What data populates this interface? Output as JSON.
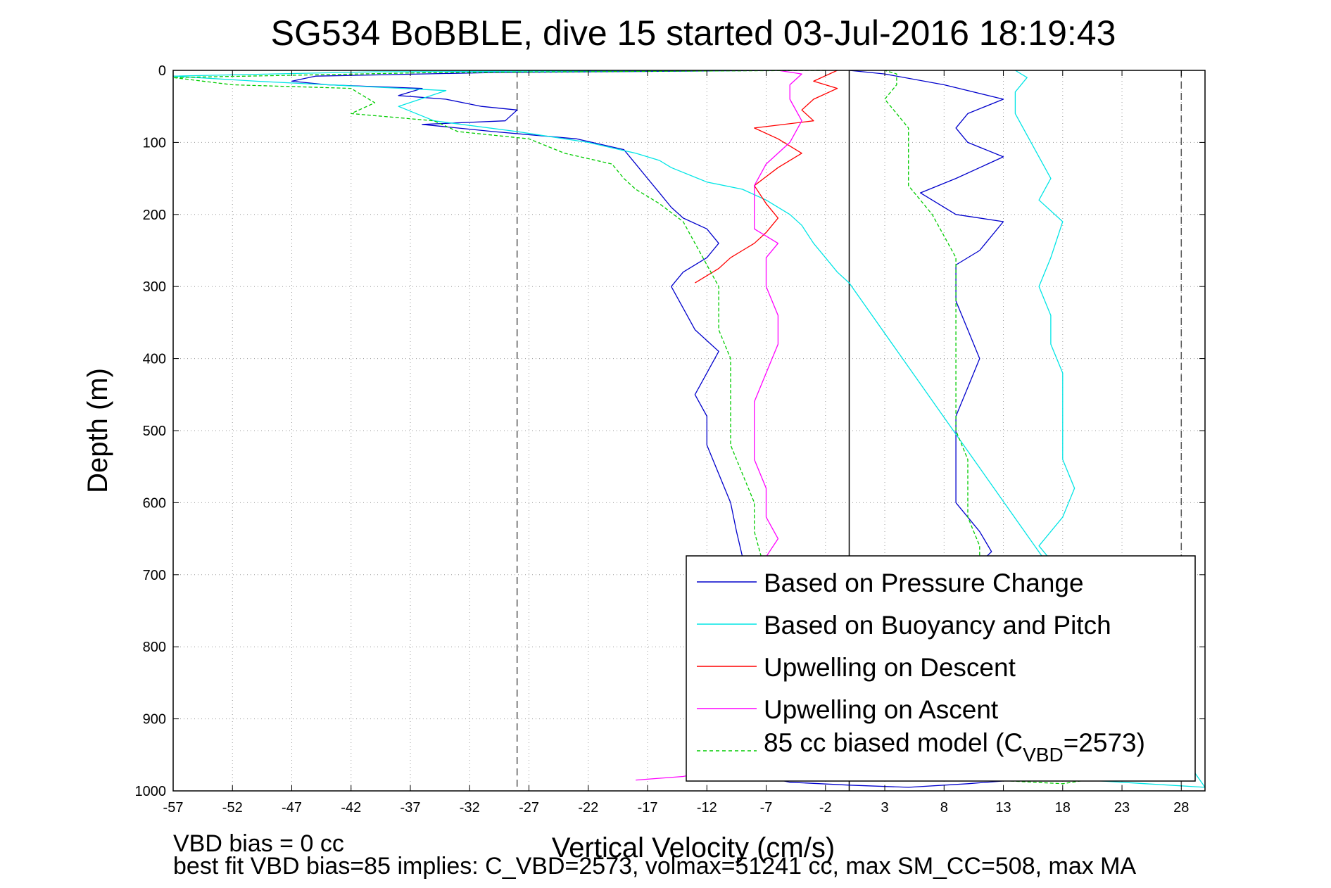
{
  "chart_data": {
    "type": "line",
    "title": "SG534 BoBBLE, dive 15 started 03-Jul-2016 18:19:43",
    "xlabel": "Vertical Velocity (cm/s)",
    "ylabel": "Depth (m)",
    "xlim": [
      -57,
      30
    ],
    "ylim": [
      1000,
      0
    ],
    "y_reversed": true,
    "grid": true,
    "x_ticks": [
      "-57",
      "-52",
      "-47",
      "-42",
      "-37",
      "-32",
      "-27",
      "-22",
      "-17",
      "-12",
      "-7",
      "-2",
      "3",
      "8",
      "13",
      "18",
      "23",
      "28"
    ],
    "y_ticks": [
      "0",
      "100",
      "200",
      "300",
      "400",
      "500",
      "600",
      "700",
      "800",
      "900",
      "1000"
    ],
    "legend_position": "bottom-right",
    "vertical_lines": [
      {
        "x": -28,
        "style": "dashed",
        "color": "#555555"
      },
      {
        "x": 0,
        "style": "solid",
        "color": "#000000"
      },
      {
        "x": 28,
        "style": "dashed",
        "color": "#555555"
      }
    ],
    "series": [
      {
        "name": "Based on Pressure Change",
        "color": "#0000cc",
        "dash": "solid",
        "points": [
          [
            -5,
            0
          ],
          [
            -30,
            3
          ],
          [
            -45,
            8
          ],
          [
            -47,
            15
          ],
          [
            -44,
            20
          ],
          [
            -36,
            25
          ],
          [
            -38,
            35
          ],
          [
            -34,
            40
          ],
          [
            -31,
            50
          ],
          [
            -28,
            55
          ],
          [
            -29,
            70
          ],
          [
            -36,
            75
          ],
          [
            -30,
            85
          ],
          [
            -23,
            95
          ],
          [
            -19,
            110
          ],
          [
            -18,
            130
          ],
          [
            -17,
            150
          ],
          [
            -16,
            170
          ],
          [
            -15,
            190
          ],
          [
            -14,
            205
          ],
          [
            -12,
            220
          ],
          [
            -11,
            240
          ],
          [
            -12,
            260
          ],
          [
            -14,
            280
          ],
          [
            -15,
            300
          ],
          [
            -14,
            330
          ],
          [
            -13,
            360
          ],
          [
            -11,
            390
          ],
          [
            -12,
            420
          ],
          [
            -13,
            450
          ],
          [
            -12,
            480
          ],
          [
            -12,
            520
          ],
          [
            -11,
            560
          ],
          [
            -10,
            600
          ],
          [
            -9.5,
            640
          ],
          [
            -9,
            675
          ],
          [
            -10,
            700
          ],
          [
            -9,
            750
          ],
          [
            -8,
            800
          ],
          [
            -7,
            850
          ],
          [
            -6,
            900
          ],
          [
            -8,
            940
          ],
          [
            -10,
            970
          ],
          [
            -5,
            988
          ],
          [
            0,
            992
          ],
          [
            5,
            995
          ],
          [
            10,
            990
          ],
          [
            14,
            985
          ],
          [
            18,
            980
          ],
          [
            16,
            970
          ],
          [
            13,
            960
          ],
          [
            10,
            940
          ],
          [
            8,
            900
          ],
          [
            8,
            860
          ],
          [
            9,
            800
          ],
          [
            9,
            750
          ],
          [
            10,
            700
          ],
          [
            12,
            668
          ],
          [
            11,
            640
          ],
          [
            9,
            600
          ],
          [
            9,
            560
          ],
          [
            9,
            520
          ],
          [
            9,
            480
          ],
          [
            10,
            440
          ],
          [
            11,
            400
          ],
          [
            10,
            360
          ],
          [
            9,
            320
          ],
          [
            9,
            270
          ],
          [
            11,
            250
          ],
          [
            13,
            210
          ],
          [
            9,
            200
          ],
          [
            6,
            170
          ],
          [
            9,
            150
          ],
          [
            13,
            120
          ],
          [
            10,
            100
          ],
          [
            9,
            80
          ],
          [
            10,
            60
          ],
          [
            13,
            40
          ],
          [
            8,
            20
          ],
          [
            3,
            5
          ],
          [
            0,
            0
          ]
        ]
      },
      {
        "name": "Based on Buoyancy and Pitch",
        "color": "#00e5e5",
        "dash": "solid",
        "points": [
          [
            -10,
            0
          ],
          [
            -40,
            2
          ],
          [
            -57,
            8
          ],
          [
            -50,
            15
          ],
          [
            -34,
            28
          ],
          [
            -38,
            50
          ],
          [
            -35,
            70
          ],
          [
            -28,
            85
          ],
          [
            -22,
            100
          ],
          [
            -18,
            115
          ],
          [
            -16,
            125
          ],
          [
            -15,
            135
          ],
          [
            -12,
            155
          ],
          [
            -9,
            165
          ],
          [
            -7,
            180
          ],
          [
            -5,
            200
          ],
          [
            -4,
            215
          ],
          [
            -3,
            240
          ],
          [
            -2,
            260
          ],
          [
            -1,
            280
          ],
          [
            0,
            295
          ],
          [
            30,
            995
          ],
          [
            25,
            990
          ],
          [
            20,
            985
          ],
          [
            19,
            960
          ],
          [
            17,
            930
          ],
          [
            17,
            900
          ],
          [
            16,
            850
          ],
          [
            17,
            800
          ],
          [
            17,
            750
          ],
          [
            18,
            700
          ],
          [
            16,
            660
          ],
          [
            18,
            620
          ],
          [
            19,
            580
          ],
          [
            18,
            540
          ],
          [
            18,
            500
          ],
          [
            18,
            460
          ],
          [
            18,
            420
          ],
          [
            17,
            380
          ],
          [
            17,
            340
          ],
          [
            16,
            300
          ],
          [
            17,
            260
          ],
          [
            18,
            210
          ],
          [
            16,
            180
          ],
          [
            17,
            150
          ],
          [
            16,
            120
          ],
          [
            15,
            90
          ],
          [
            14,
            60
          ],
          [
            14,
            30
          ],
          [
            15,
            10
          ],
          [
            14,
            0
          ]
        ]
      },
      {
        "name": "Upwelling on Descent",
        "color": "#ff0000",
        "dash": "solid",
        "points": [
          [
            -1,
            0
          ],
          [
            -3,
            15
          ],
          [
            -1,
            25
          ],
          [
            -3,
            40
          ],
          [
            -4,
            55
          ],
          [
            -3,
            70
          ],
          [
            -8,
            80
          ],
          [
            -6,
            95
          ],
          [
            -4,
            115
          ],
          [
            -6,
            135
          ],
          [
            -8,
            160
          ],
          [
            -7,
            185
          ],
          [
            -6,
            205
          ],
          [
            -7,
            225
          ],
          [
            -8,
            240
          ],
          [
            -9,
            250
          ],
          [
            -10,
            260
          ],
          [
            -11,
            275
          ],
          [
            -12,
            285
          ],
          [
            -13,
            295
          ]
        ]
      },
      {
        "name": "Upwelling on Ascent",
        "color": "#ff00ff",
        "dash": "solid",
        "points": [
          [
            -18,
            985
          ],
          [
            -14,
            980
          ],
          [
            -11,
            970
          ],
          [
            -8,
            950
          ],
          [
            -6,
            920
          ],
          [
            -8,
            900
          ],
          [
            -7,
            850
          ],
          [
            -8,
            800
          ],
          [
            -7,
            750
          ],
          [
            -7,
            700
          ],
          [
            -7,
            675
          ],
          [
            -6,
            650
          ],
          [
            -7,
            620
          ],
          [
            -7,
            580
          ],
          [
            -8,
            540
          ],
          [
            -8,
            500
          ],
          [
            -8,
            460
          ],
          [
            -7,
            420
          ],
          [
            -6,
            380
          ],
          [
            -6,
            340
          ],
          [
            -7,
            300
          ],
          [
            -7,
            260
          ],
          [
            -6,
            240
          ],
          [
            -8,
            220
          ],
          [
            -8,
            190
          ],
          [
            -8,
            160
          ],
          [
            -7,
            130
          ],
          [
            -5,
            100
          ],
          [
            -4,
            70
          ],
          [
            -5,
            40
          ],
          [
            -5,
            20
          ],
          [
            -4,
            5
          ],
          [
            -6,
            0
          ]
        ]
      },
      {
        "name": "85 cc biased model (C_VBD=2573)",
        "color": "#00cc00",
        "dash": "dashed",
        "points": [
          [
            -2,
            0
          ],
          [
            -35,
            3
          ],
          [
            -57,
            10
          ],
          [
            -52,
            20
          ],
          [
            -42,
            25
          ],
          [
            -40,
            45
          ],
          [
            -42,
            60
          ],
          [
            -35,
            70
          ],
          [
            -33,
            85
          ],
          [
            -27,
            95
          ],
          [
            -24,
            115
          ],
          [
            -20,
            130
          ],
          [
            -19,
            150
          ],
          [
            -18,
            165
          ],
          [
            -16,
            185
          ],
          [
            -14,
            210
          ],
          [
            -13,
            240
          ],
          [
            -12,
            270
          ],
          [
            -11,
            300
          ],
          [
            -11,
            330
          ],
          [
            -11,
            360
          ],
          [
            -10,
            400
          ],
          [
            -10,
            440
          ],
          [
            -10,
            480
          ],
          [
            -10,
            520
          ],
          [
            -9,
            560
          ],
          [
            -8,
            600
          ],
          [
            -8,
            640
          ],
          [
            -7,
            700
          ],
          [
            -6,
            760
          ],
          [
            -5,
            820
          ],
          [
            -4,
            880
          ],
          [
            -2,
            920
          ],
          [
            5,
            975
          ],
          [
            12,
            985
          ],
          [
            18,
            990
          ],
          [
            20,
            985
          ],
          [
            15,
            960
          ],
          [
            13,
            930
          ],
          [
            12,
            900
          ],
          [
            11,
            850
          ],
          [
            11,
            800
          ],
          [
            11,
            750
          ],
          [
            11,
            700
          ],
          [
            11,
            660
          ],
          [
            10,
            620
          ],
          [
            10,
            580
          ],
          [
            10,
            540
          ],
          [
            9,
            500
          ],
          [
            9,
            460
          ],
          [
            9,
            420
          ],
          [
            9,
            380
          ],
          [
            9,
            340
          ],
          [
            9,
            300
          ],
          [
            9,
            260
          ],
          [
            8,
            230
          ],
          [
            7,
            200
          ],
          [
            6,
            180
          ],
          [
            5,
            160
          ],
          [
            5,
            140
          ],
          [
            5,
            120
          ],
          [
            5,
            100
          ],
          [
            5,
            80
          ],
          [
            4,
            60
          ],
          [
            3,
            40
          ],
          [
            4,
            20
          ],
          [
            4,
            5
          ],
          [
            3,
            0
          ]
        ]
      }
    ],
    "legend": [
      {
        "label": "Based on Pressure Change",
        "color": "#0000cc",
        "dash": "solid"
      },
      {
        "label": "Based on Buoyancy and Pitch",
        "color": "#00e5e5",
        "dash": "solid"
      },
      {
        "label": "Upwelling on Descent",
        "color": "#ff0000",
        "dash": "solid"
      },
      {
        "label": "Upwelling on Ascent",
        "color": "#ff00ff",
        "dash": "solid"
      },
      {
        "label_main": "85 cc biased model (C",
        "label_sub": "VBD",
        "label_tail": "=2573)",
        "color": "#00cc00",
        "dash": "dashed"
      }
    ]
  },
  "footer": {
    "line1": "VBD bias = 0 cc",
    "line2": "best fit VBD bias=85 implies: C_VBD=2573, volmax=51241 cc, max SM_CC=508, max MA"
  }
}
